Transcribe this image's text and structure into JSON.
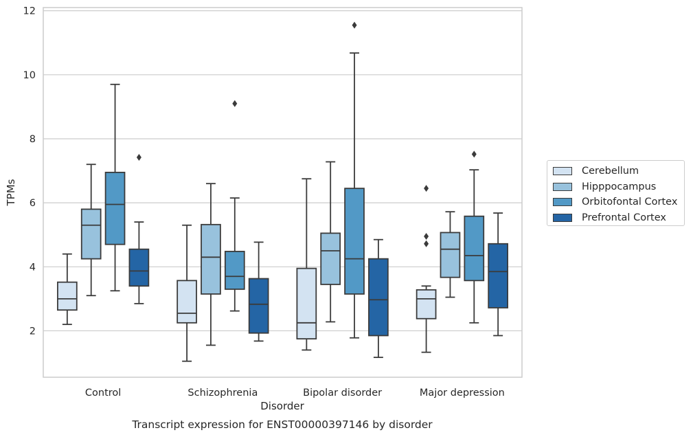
{
  "chart_data": {
    "type": "boxplot",
    "title": "Transcript expression for ENST00000397146 by disorder",
    "xlabel": "Disorder",
    "ylabel": "TPMs",
    "ylim": [
      0.55,
      12.1
    ],
    "yticks": [
      2,
      4,
      6,
      8,
      10,
      12
    ],
    "grid": true,
    "legend_position": "right",
    "categories": [
      "Control",
      "Schizophrenia",
      "Bipolar disorder",
      "Major depression"
    ],
    "series": [
      {
        "name": "Cerebellum",
        "color": "#d3e3f2",
        "boxes": [
          {
            "whislo": 2.2,
            "q1": 2.65,
            "med": 3.0,
            "q3": 3.52,
            "whishi": 4.4,
            "fliers": []
          },
          {
            "whislo": 1.05,
            "q1": 2.25,
            "med": 2.55,
            "q3": 3.57,
            "whishi": 5.3,
            "fliers": []
          },
          {
            "whislo": 1.4,
            "q1": 1.75,
            "med": 2.25,
            "q3": 3.95,
            "whishi": 6.75,
            "fliers": []
          },
          {
            "whislo": 1.33,
            "q1": 2.38,
            "med": 3.0,
            "q3": 3.28,
            "whishi": 3.4,
            "fliers": [
              4.72,
              4.95,
              6.45
            ]
          }
        ]
      },
      {
        "name": "Hipppocampus",
        "color": "#98c2dd",
        "boxes": [
          {
            "whislo": 3.1,
            "q1": 4.25,
            "med": 5.3,
            "q3": 5.8,
            "whishi": 7.2,
            "fliers": []
          },
          {
            "whislo": 1.55,
            "q1": 3.15,
            "med": 4.3,
            "q3": 5.32,
            "whishi": 6.6,
            "fliers": []
          },
          {
            "whislo": 2.28,
            "q1": 3.45,
            "med": 4.5,
            "q3": 5.05,
            "whishi": 7.28,
            "fliers": []
          },
          {
            "whislo": 3.05,
            "q1": 3.67,
            "med": 4.55,
            "q3": 5.07,
            "whishi": 5.72,
            "fliers": []
          }
        ]
      },
      {
        "name": "Orbitofontal Cortex",
        "color": "#5299c6",
        "boxes": [
          {
            "whislo": 3.25,
            "q1": 4.7,
            "med": 5.95,
            "q3": 6.95,
            "whishi": 9.7,
            "fliers": []
          },
          {
            "whislo": 2.62,
            "q1": 3.3,
            "med": 3.7,
            "q3": 4.48,
            "whishi": 6.15,
            "fliers": [
              9.1
            ]
          },
          {
            "whislo": 1.78,
            "q1": 3.15,
            "med": 4.25,
            "q3": 6.45,
            "whishi": 10.68,
            "fliers": [
              11.55
            ]
          },
          {
            "whislo": 2.25,
            "q1": 3.57,
            "med": 4.35,
            "q3": 5.58,
            "whishi": 7.03,
            "fliers": [
              7.52
            ]
          }
        ]
      },
      {
        "name": "Prefrontal Cortex",
        "color": "#2465a5",
        "boxes": [
          {
            "whislo": 2.85,
            "q1": 3.4,
            "med": 3.87,
            "q3": 4.55,
            "whishi": 5.4,
            "fliers": [
              7.42
            ]
          },
          {
            "whislo": 1.68,
            "q1": 1.93,
            "med": 2.83,
            "q3": 3.63,
            "whishi": 4.77,
            "fliers": []
          },
          {
            "whislo": 1.17,
            "q1": 1.85,
            "med": 2.97,
            "q3": 4.25,
            "whishi": 4.85,
            "fliers": []
          },
          {
            "whislo": 1.85,
            "q1": 2.72,
            "med": 3.85,
            "q3": 4.72,
            "whishi": 5.68,
            "fliers": []
          }
        ]
      }
    ]
  }
}
